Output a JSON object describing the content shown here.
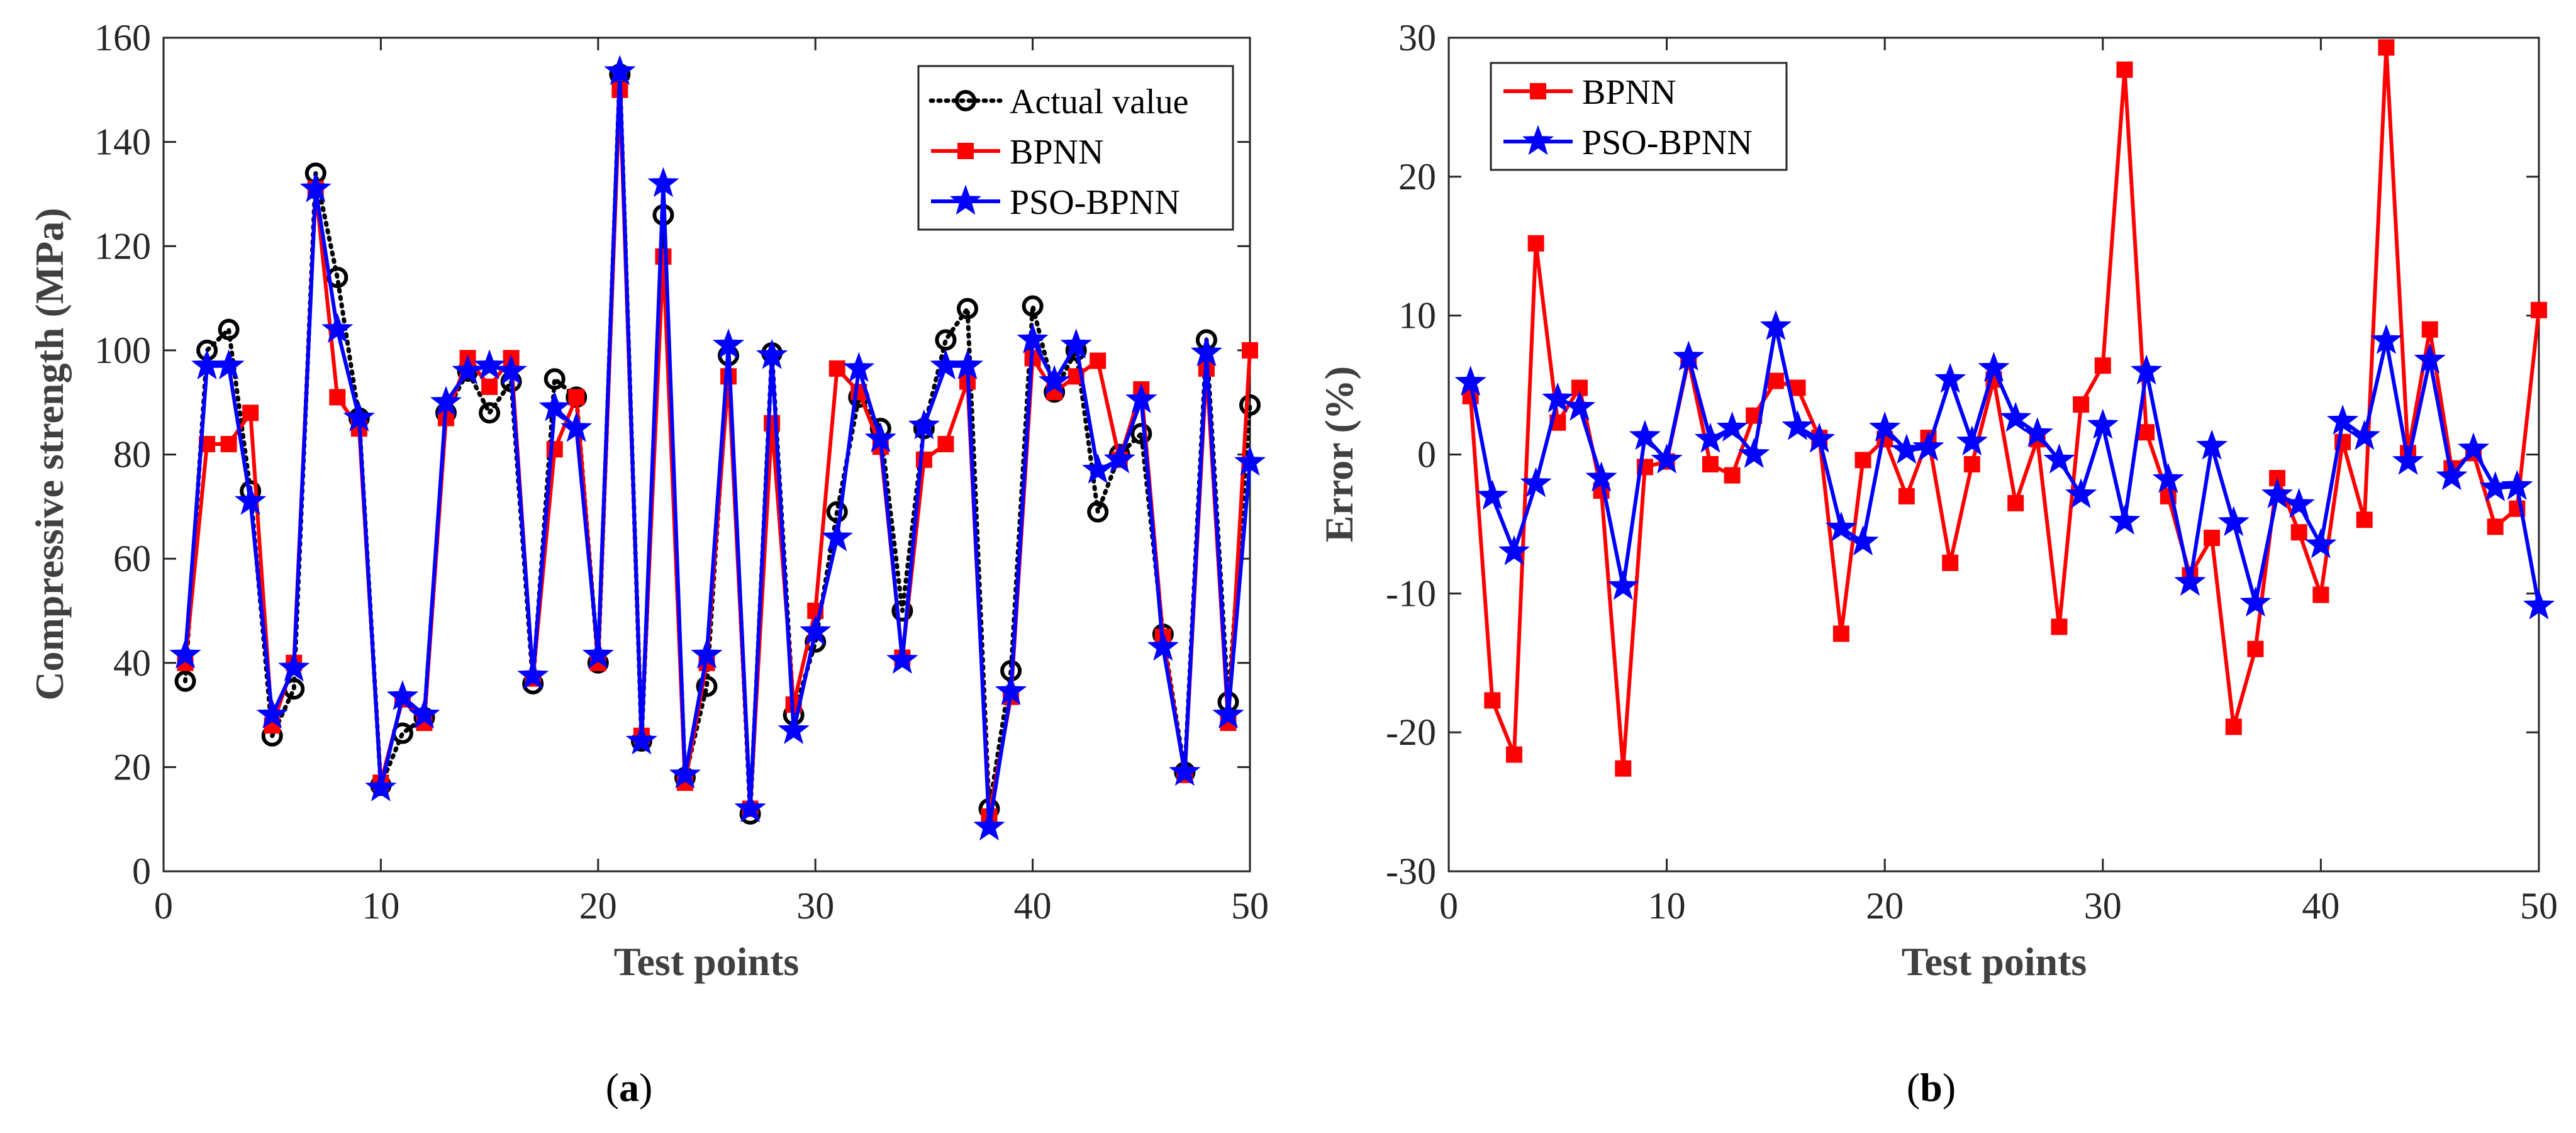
{
  "colors": {
    "actual": "#000000",
    "bpnn": "#ff0000",
    "pso": "#0000ff",
    "axis": "#262626"
  },
  "chart_data": [
    {
      "id": "a",
      "type": "line",
      "panel_label": "a",
      "xlabel": "Test points",
      "ylabel": "Compressive strength (MPa)",
      "xlim": [
        0,
        50
      ],
      "ylim": [
        0,
        160
      ],
      "xticks": [
        0,
        10,
        20,
        30,
        40,
        50
      ],
      "yticks": [
        0,
        20,
        40,
        60,
        80,
        100,
        120,
        140,
        160
      ],
      "grid": false,
      "legend_position": "top-right",
      "x": [
        1,
        2,
        3,
        4,
        5,
        6,
        7,
        8,
        9,
        10,
        11,
        12,
        13,
        14,
        15,
        16,
        17,
        18,
        19,
        20,
        21,
        22,
        23,
        24,
        25,
        26,
        27,
        28,
        29,
        30,
        31,
        32,
        33,
        34,
        35,
        36,
        37,
        38,
        39,
        40,
        41,
        42,
        43,
        44,
        45,
        46,
        47,
        48,
        49,
        50
      ],
      "series": [
        {
          "name": "Actual value",
          "style": "dotted-circle",
          "values": [
            36.5,
            100,
            104,
            73,
            26,
            35,
            134,
            114,
            87,
            16.5,
            26.5,
            29.5,
            88,
            96,
            88,
            94,
            36,
            94.5,
            91,
            40,
            153,
            25,
            126,
            18,
            35.5,
            99,
            11,
            99.5,
            30,
            44,
            69,
            91,
            85,
            50,
            85,
            102,
            108,
            12,
            38.5,
            108.5,
            92,
            100,
            69,
            80,
            84,
            45.5,
            19,
            102,
            32.5,
            89.5
          ]
        },
        {
          "name": "BPNN",
          "style": "square",
          "values": [
            40,
            82,
            82,
            88,
            28,
            40,
            131,
            91,
            85,
            17,
            33,
            28.5,
            87,
            98.5,
            93,
            98.5,
            37,
            81,
            91,
            40,
            150,
            26,
            118,
            17,
            40,
            95,
            12,
            86,
            32,
            50,
            96.5,
            92,
            81.5,
            41,
            79,
            82,
            94,
            10.5,
            33.5,
            98.5,
            92,
            95,
            98,
            79,
            92.5,
            45,
            18.5,
            96.5,
            28.5,
            100
          ]
        },
        {
          "name": "PSO-BPNN",
          "style": "star",
          "values": [
            41.5,
            97,
            97,
            71,
            30,
            39,
            131,
            104,
            87,
            16,
            33.5,
            30,
            90,
            96,
            97,
            96,
            37.5,
            89,
            85,
            41.5,
            153.5,
            25,
            132,
            18.5,
            41.5,
            101,
            12,
            99,
            27,
            46,
            64,
            96.5,
            83,
            40.5,
            85.5,
            97,
            97,
            8.5,
            34.5,
            102,
            94,
            101,
            77,
            79,
            90.5,
            43,
            19,
            99.5,
            30,
            78.5
          ]
        }
      ]
    },
    {
      "id": "b",
      "type": "line",
      "panel_label": "b",
      "xlabel": "Test points",
      "ylabel": "Error (%)",
      "xlim": [
        0,
        50
      ],
      "ylim": [
        -30,
        30
      ],
      "xticks": [
        0,
        10,
        20,
        30,
        40,
        50
      ],
      "yticks": [
        -30,
        -20,
        -10,
        0,
        10,
        20,
        30
      ],
      "grid": false,
      "legend_position": "top-left",
      "x": [
        1,
        2,
        3,
        4,
        5,
        6,
        7,
        8,
        9,
        10,
        11,
        12,
        13,
        14,
        15,
        16,
        17,
        18,
        19,
        20,
        21,
        22,
        23,
        24,
        25,
        26,
        27,
        28,
        29,
        30,
        31,
        32,
        33,
        34,
        35,
        36,
        37,
        38,
        39,
        40,
        41,
        42,
        43,
        44,
        45,
        46,
        47,
        48,
        49,
        50
      ],
      "series": [
        {
          "name": "BPNN",
          "style": "square",
          "values": [
            4.2,
            -17.7,
            -21.6,
            15.2,
            2.3,
            4.8,
            -2.6,
            -22.6,
            -0.9,
            -0.5,
            6.8,
            -0.7,
            -1.5,
            2.8,
            5.3,
            4.8,
            1.2,
            -12.9,
            -0.4,
            1.1,
            -3,
            1.2,
            -7.8,
            -0.7,
            5.4,
            -3.5,
            1.1,
            -12.4,
            3.6,
            6.4,
            27.7,
            1.6,
            -3,
            -8.7,
            -6,
            -19.6,
            -14,
            -1.7,
            -5.6,
            -10.1,
            0.9,
            -4.7,
            29.3,
            0.1,
            9,
            -1,
            0.1,
            -5.2,
            -3.9,
            10.4
          ]
        },
        {
          "name": "PSO-BPNN",
          "style": "star",
          "values": [
            5.2,
            -3,
            -7,
            -2.1,
            4,
            3.4,
            -1.7,
            -9.5,
            1.3,
            -0.4,
            7,
            1.1,
            1.9,
            0,
            9.2,
            2,
            1.1,
            -5.3,
            -6.3,
            1.9,
            0.3,
            0.5,
            5.4,
            0.9,
            6.2,
            2.6,
            1.5,
            -0.4,
            -2.9,
            2.1,
            -4.8,
            6,
            -1.8,
            -9.2,
            0.6,
            -4.9,
            -10.7,
            -2.9,
            -3.6,
            -6.5,
            2.4,
            1.3,
            8.2,
            -0.5,
            6.8,
            -1.6,
            0.4,
            -2.4,
            -2.3,
            -10.9
          ]
        }
      ]
    }
  ]
}
